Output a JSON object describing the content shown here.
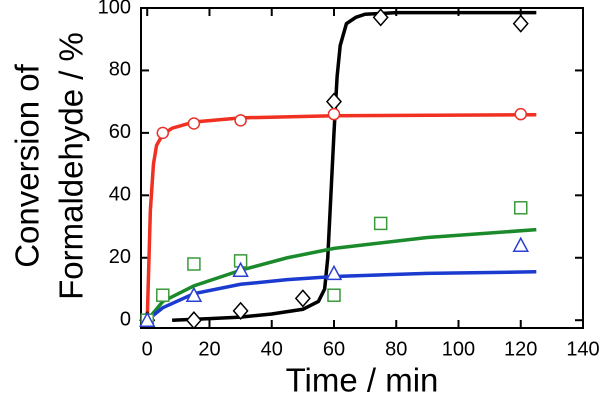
{
  "chart_data": {
    "type": "scatter",
    "xlabel": "Time / min",
    "ylabel": [
      "Conversion of",
      "Formaldehyde / %"
    ],
    "xlim": [
      -2,
      140
    ],
    "ylim": [
      -2.5,
      100
    ],
    "xticks": [
      0,
      20,
      40,
      60,
      80,
      100,
      120,
      140
    ],
    "yticks": [
      0,
      20,
      40,
      60,
      80,
      100
    ],
    "series": [
      {
        "marker": "diamond",
        "color": "#000000",
        "x": [
          0,
          15,
          30,
          50,
          60,
          75,
          120
        ],
        "values": [
          0,
          0,
          3,
          7,
          70,
          97,
          95
        ]
      },
      {
        "marker": "circle",
        "color": "#e8322a",
        "x": [
          0,
          5,
          15,
          30,
          60,
          120
        ],
        "values": [
          0,
          60,
          63,
          64,
          66,
          66
        ]
      },
      {
        "marker": "square",
        "color": "#3a9a3a",
        "x": [
          0,
          5,
          15,
          30,
          60,
          75,
          120
        ],
        "values": [
          0,
          8,
          18,
          19,
          8,
          31,
          36
        ]
      },
      {
        "marker": "triangle",
        "color": "#2a40d0",
        "x": [
          0,
          15,
          30,
          60,
          120
        ],
        "values": [
          0,
          8,
          16,
          15,
          24
        ]
      }
    ],
    "fits": [
      {
        "color": "#000000",
        "x": [
          8,
          20,
          30,
          40,
          50,
          55,
          57,
          58,
          59,
          60,
          61,
          62,
          64,
          67,
          70,
          80,
          100,
          125
        ],
        "values": [
          0,
          0.5,
          1,
          2,
          3.5,
          6,
          10,
          20,
          40,
          60,
          78,
          88,
          95,
          97,
          98,
          98.5,
          98.5,
          98.5
        ]
      },
      {
        "color": "#f03020",
        "x": [
          0,
          1,
          2,
          3,
          5,
          8,
          15,
          30,
          60,
          125
        ],
        "values": [
          0,
          35,
          50,
          56,
          59.5,
          61.5,
          63.5,
          64.8,
          65.5,
          65.8
        ]
      },
      {
        "color": "#1a8a2a",
        "x": [
          0,
          5,
          15,
          30,
          45,
          60,
          90,
          125
        ],
        "values": [
          0,
          6,
          11,
          16,
          20,
          23,
          26.5,
          29
        ]
      },
      {
        "color": "#1a3ad0",
        "x": [
          0,
          5,
          15,
          30,
          45,
          60,
          90,
          125
        ],
        "values": [
          0,
          4,
          8.5,
          11.5,
          13,
          14,
          15,
          15.5
        ]
      }
    ]
  }
}
